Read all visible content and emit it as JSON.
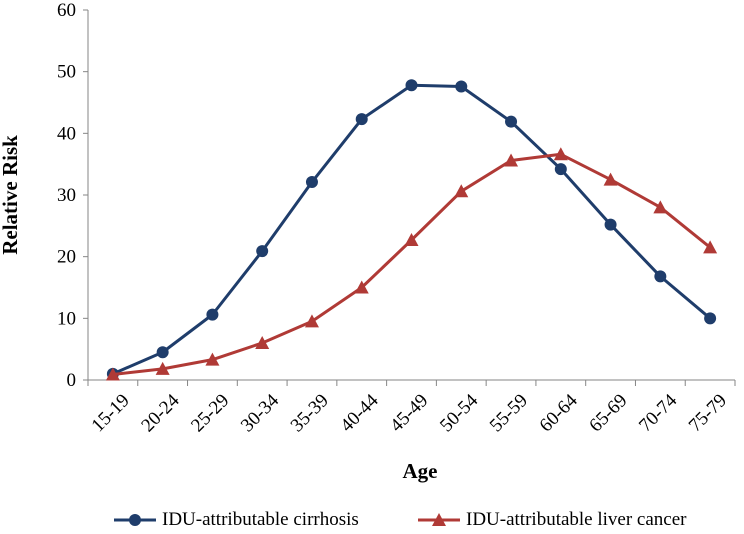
{
  "chart_data": {
    "type": "line",
    "xlabel": "Age",
    "ylabel": "Relative Risk",
    "ylim": [
      0,
      60
    ],
    "yticks": [
      0,
      10,
      20,
      30,
      40,
      50,
      60
    ],
    "categories": [
      "15-19",
      "20-24",
      "25-29",
      "30-34",
      "35-39",
      "40-44",
      "45-49",
      "50-54",
      "55-59",
      "60-64",
      "65-69",
      "70-74",
      "75-79"
    ],
    "legend_position": "bottom",
    "grid": false,
    "series": [
      {
        "name": "IDU-attributable cirrhosis",
        "color": "#1f3d6b",
        "marker": "circle",
        "values": [
          1.0,
          4.5,
          10.6,
          20.9,
          32.1,
          42.3,
          47.8,
          47.6,
          41.9,
          34.2,
          25.2,
          16.8,
          10.0
        ]
      },
      {
        "name": "IDU-attributable liver cancer",
        "color": "#b03a36",
        "marker": "triangle",
        "values": [
          0.9,
          1.8,
          3.3,
          6.0,
          9.5,
          15.0,
          22.7,
          30.6,
          35.6,
          36.6,
          32.5,
          28.0,
          21.5
        ]
      }
    ]
  }
}
